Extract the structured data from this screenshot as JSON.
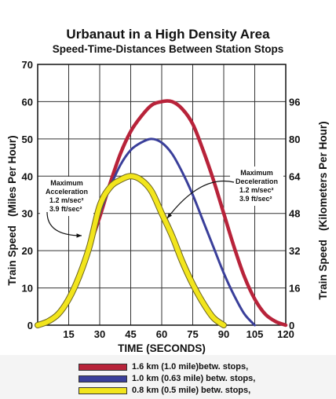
{
  "chart_data": {
    "type": "line",
    "title": "Urbanaut in a High Density Area",
    "subtitle": "Speed-Time-Distances Between Station Stops",
    "xlabel": "TIME (SECONDS)",
    "ylabel_left": "Train Speed   (Miles Per Hour)",
    "ylabel_right": "Train Speed   (Kilometers Per Hour)",
    "xlim": [
      0,
      120
    ],
    "ylim": [
      0,
      70
    ],
    "x_ticks": [
      "15",
      "30",
      "45",
      "60",
      "75",
      "90",
      "105",
      "120"
    ],
    "y_ticks_left": [
      "0",
      "10",
      "20",
      "30",
      "40",
      "50",
      "60",
      "70"
    ],
    "y_ticks_right": [
      "0",
      "16",
      "32",
      "48",
      "64",
      "80",
      "96"
    ],
    "grid": true,
    "series": [
      {
        "name": "1.6 km (1.0 mile)betw. stops,",
        "color": "#b8233a",
        "x": [
          0,
          5,
          10,
          15,
          20,
          25,
          30,
          35,
          40,
          45,
          50,
          55,
          60,
          65,
          70,
          75,
          80,
          85,
          90,
          95,
          100,
          105,
          110,
          115,
          120
        ],
        "y": [
          0,
          1,
          3,
          7,
          13,
          21,
          29,
          38,
          46,
          52,
          56,
          59,
          60,
          60,
          58,
          54,
          47,
          39,
          30,
          21,
          13,
          7,
          3,
          1,
          0
        ]
      },
      {
        "name": "1.0 km (0.63 mile) betw. stops,",
        "color": "#3a3f9a",
        "x": [
          0,
          5,
          10,
          15,
          20,
          25,
          30,
          35,
          40,
          45,
          50,
          55,
          60,
          65,
          70,
          75,
          80,
          85,
          90,
          95,
          100,
          105
        ],
        "y": [
          0,
          1,
          3,
          7,
          13,
          21,
          30,
          37,
          43,
          47,
          49,
          50,
          49,
          46,
          41,
          35,
          28,
          21,
          14,
          8,
          3,
          0
        ]
      },
      {
        "name": "0.8 km (0.5 mile) betw. stops,",
        "color": "#f2e51c",
        "x": [
          0,
          5,
          10,
          15,
          20,
          25,
          30,
          35,
          40,
          45,
          50,
          55,
          60,
          65,
          70,
          75,
          80,
          85,
          90
        ],
        "y": [
          0,
          1,
          3,
          7,
          13,
          21,
          32,
          37,
          39,
          40,
          39,
          36,
          30,
          24,
          17,
          11,
          6,
          2,
          0
        ]
      }
    ],
    "annotations": [
      {
        "lines": [
          "Maximum",
          "Acceleration",
          "1.2 m/sec²",
          "3.9 ft/sec²"
        ]
      },
      {
        "lines": [
          "Maximum",
          "Deceleration",
          "1.2 m/sec²",
          "3.9 ft/sec²"
        ]
      }
    ]
  }
}
